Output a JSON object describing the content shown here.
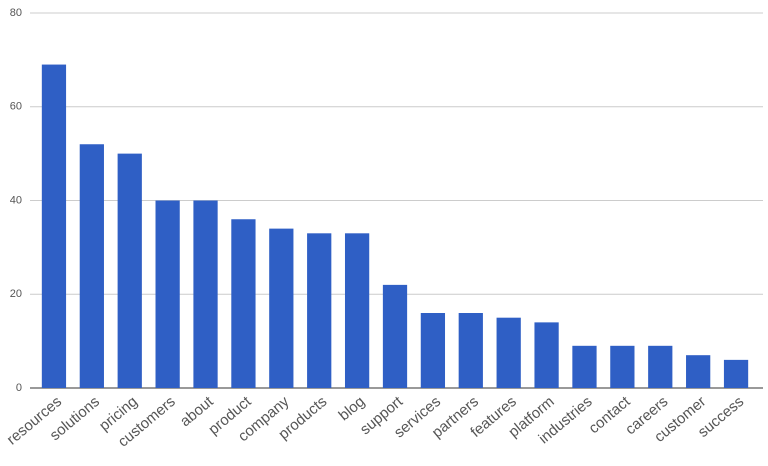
{
  "chart_data": {
    "type": "bar",
    "categories": [
      "resources",
      "solutions",
      "pricing",
      "customers",
      "about",
      "product",
      "company",
      "products",
      "blog",
      "support",
      "services",
      "partners",
      "features",
      "platform",
      "industries",
      "contact",
      "careers",
      "customer",
      "success"
    ],
    "values": [
      69,
      52,
      50,
      40,
      40,
      36,
      34,
      33,
      33,
      22,
      16,
      16,
      15,
      14,
      9,
      9,
      9,
      7,
      6
    ],
    "color": "#2f5fc5",
    "ylim": [
      0,
      80
    ],
    "yticks": [
      0,
      20,
      40,
      60,
      80
    ],
    "grid": true
  }
}
